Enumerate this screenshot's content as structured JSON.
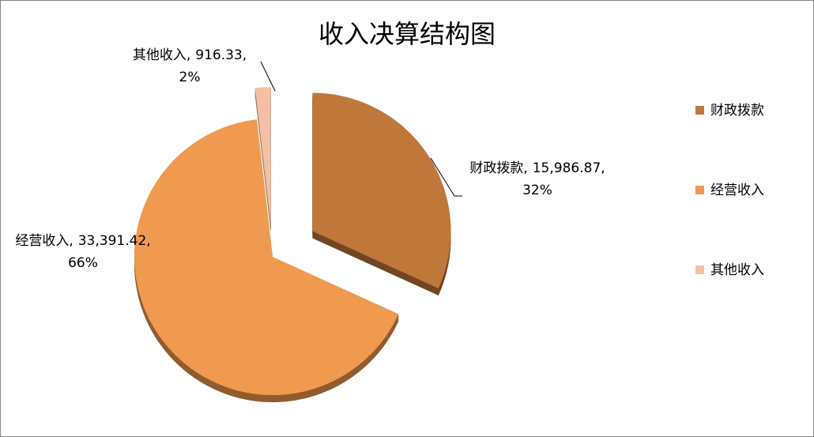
{
  "chart_data": {
    "type": "pie",
    "title": "收入决算结构图",
    "categories": [
      "财政拨款",
      "经营收入",
      "其他收入"
    ],
    "values": [
      15986.87,
      33391.42,
      916.33
    ],
    "value_labels": [
      "15,986.87",
      "33,391.42",
      "916.33"
    ],
    "percents": [
      32,
      66,
      2
    ],
    "percent_labels": [
      "32%",
      "66%",
      "2%"
    ],
    "label_separator": ",",
    "colors": [
      "#c0773a",
      "#f09a4f",
      "#f4bfa5"
    ],
    "legend": "right"
  }
}
